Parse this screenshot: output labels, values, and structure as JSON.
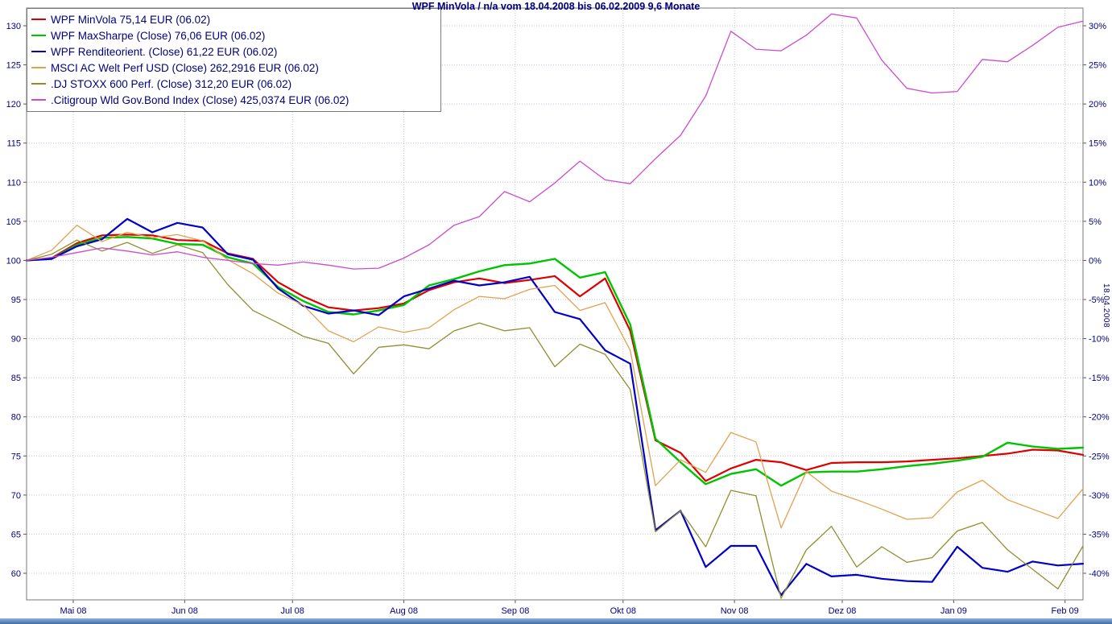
{
  "colors": {
    "title": "#000080",
    "axis_text": "#00007f",
    "axis_line": "#555555",
    "plot_border": "#777777",
    "grid": "#bcc6da",
    "background": "#ffffff",
    "bottom_bar_top": "#8fb2dd",
    "bottom_bar_bottom": "#3e6ea8"
  },
  "rotated_date_label": "18.04.2008",
  "chart_data": {
    "type": "line",
    "title": "WPF MinVola / n/a vom 18.04.2008 bis 06.02.2009 9,6 Monate",
    "x_axis": {
      "start": "18.04.2008",
      "end": "06.02.2009",
      "total_days": 294,
      "sampling": "weekly",
      "points": 43,
      "ticks": [
        {
          "label": "Mai 08",
          "day": 13
        },
        {
          "label": "Jun 08",
          "day": 44
        },
        {
          "label": "Jul 08",
          "day": 74
        },
        {
          "label": "Aug 08",
          "day": 105
        },
        {
          "label": "Sep 08",
          "day": 136
        },
        {
          "label": "Okt 08",
          "day": 166
        },
        {
          "label": "Nov 08",
          "day": 197
        },
        {
          "label": "Dez 08",
          "day": 227
        },
        {
          "label": "Jan 09",
          "day": 258
        },
        {
          "label": "Feb 09",
          "day": 289
        }
      ]
    },
    "y_axis_left": {
      "ticks": [
        60,
        65,
        70,
        75,
        80,
        85,
        90,
        95,
        100,
        105,
        110,
        115,
        120,
        125,
        130
      ],
      "range_shown": [
        56.6,
        132.3
      ]
    },
    "y_axis_right": {
      "ticks_percent": [
        -40,
        -35,
        -30,
        -25,
        -20,
        -15,
        -10,
        -5,
        0,
        5,
        10,
        15,
        20,
        25,
        30
      ],
      "suffix": "%",
      "base_value": 100
    },
    "grid": true,
    "legend_position": "top-left",
    "series": [
      {
        "label": "WPF MinVola 75,14 EUR (06.02)",
        "color": "#dd0000",
        "line_width": 2.2,
        "values": [
          100.0,
          100.3,
          102.2,
          103.2,
          103.3,
          103.2,
          102.6,
          102.5,
          100.9,
          100.2,
          97.2,
          95.4,
          94.0,
          93.6,
          93.9,
          94.5,
          96.2,
          97.2,
          97.7,
          97.1,
          97.5,
          98.0,
          95.4,
          97.7,
          91.0,
          77.0,
          75.4,
          71.8,
          73.4,
          74.5,
          74.2,
          73.2,
          74.1,
          74.2,
          74.2,
          74.3,
          74.5,
          74.7,
          75.0,
          75.3,
          75.8,
          75.7,
          75.14
        ]
      },
      {
        "label": "WPF MaxSharpe (Close) 76,06 EUR (06.02)",
        "color": "#00c400",
        "line_width": 2.4,
        "values": [
          100.0,
          100.2,
          102.0,
          102.9,
          103.0,
          102.8,
          102.1,
          102.0,
          100.4,
          99.6,
          96.6,
          94.8,
          93.4,
          93.1,
          93.6,
          94.3,
          96.8,
          97.6,
          98.6,
          99.4,
          99.6,
          100.2,
          97.8,
          98.5,
          91.8,
          77.2,
          74.2,
          71.4,
          72.7,
          73.3,
          71.2,
          72.9,
          73.0,
          73.0,
          73.3,
          73.7,
          74.0,
          74.4,
          74.9,
          76.7,
          76.2,
          75.9,
          76.06
        ]
      },
      {
        "label": "WPF Renditeorient. (Close) 61,22 EUR (06.02)",
        "color": "#0000c8",
        "line_width": 2.2,
        "values": [
          100.0,
          100.2,
          101.8,
          102.7,
          105.3,
          103.6,
          104.8,
          104.2,
          100.8,
          100.1,
          96.4,
          94.2,
          93.2,
          93.6,
          93.0,
          95.4,
          96.4,
          97.4,
          96.8,
          97.2,
          97.9,
          93.4,
          92.5,
          88.5,
          86.8,
          65.5,
          68.0,
          60.8,
          63.5,
          63.5,
          57.2,
          61.2,
          59.6,
          59.8,
          59.3,
          59.0,
          58.9,
          63.4,
          60.7,
          60.2,
          61.5,
          61.0,
          61.22
        ]
      },
      {
        "label": "MSCI AC Welt Perf USD (Close) 262,2916 EUR (06.02)",
        "color": "#e2a14f",
        "line_width": 1.3,
        "values": [
          100.0,
          101.3,
          104.5,
          102.4,
          103.6,
          102.9,
          103.3,
          102.5,
          100.1,
          98.3,
          95.8,
          94.3,
          91.0,
          89.6,
          91.5,
          90.8,
          91.4,
          93.7,
          95.4,
          95.1,
          96.3,
          96.8,
          93.6,
          94.6,
          88.5,
          71.2,
          74.5,
          72.9,
          78.0,
          76.8,
          65.8,
          73.0,
          70.5,
          69.4,
          68.2,
          66.9,
          67.1,
          70.4,
          71.9,
          69.4,
          68.2,
          67.0,
          70.8
        ]
      },
      {
        "label": ".DJ STOXX 600 Perf. (Close) 312,20 EUR (06.02)",
        "color": "#8f8f2f",
        "line_width": 1.3,
        "values": [
          100.0,
          100.8,
          102.6,
          101.2,
          102.3,
          100.9,
          102.0,
          101.0,
          96.9,
          93.6,
          92.0,
          90.3,
          89.4,
          85.5,
          88.9,
          89.2,
          88.7,
          91.0,
          92.0,
          91.0,
          91.4,
          86.4,
          89.3,
          88.0,
          83.5,
          65.3,
          68.0,
          63.4,
          70.6,
          69.9,
          56.8,
          63.0,
          66.0,
          60.8,
          63.4,
          61.4,
          62.0,
          65.4,
          66.5,
          63.0,
          60.5,
          58.0,
          63.5
        ]
      },
      {
        "label": ".Citigroup Wld Gov.Bond Index (Close) 425,0374 EUR (06.02)",
        "color": "#cc4ccc",
        "line_width": 1.3,
        "values": [
          100.0,
          100.4,
          101.0,
          101.6,
          101.2,
          100.7,
          101.1,
          100.4,
          100.0,
          99.6,
          99.4,
          99.8,
          99.4,
          98.9,
          99.0,
          100.3,
          102.0,
          104.5,
          105.6,
          108.8,
          107.5,
          109.9,
          112.7,
          110.3,
          109.8,
          113.0,
          116.0,
          121.0,
          129.3,
          127.0,
          126.8,
          128.8,
          131.5,
          131.0,
          125.6,
          122.0,
          121.4,
          121.6,
          125.7,
          125.4,
          127.5,
          129.8,
          130.6
        ]
      }
    ]
  }
}
